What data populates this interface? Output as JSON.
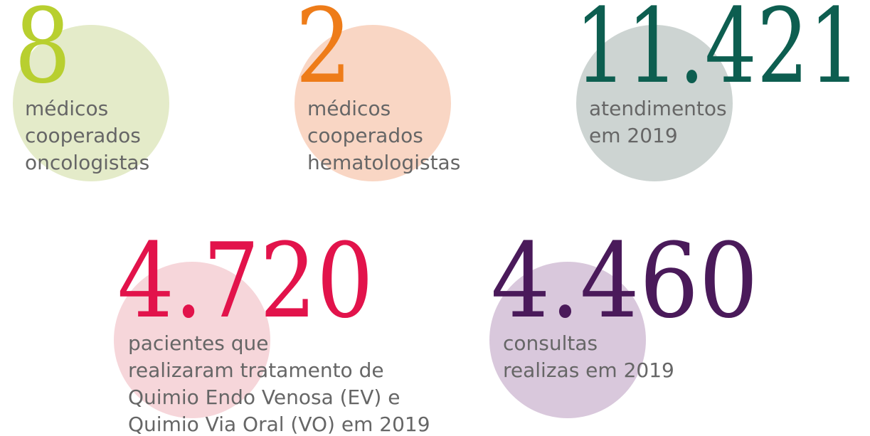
{
  "stats": [
    {
      "value": "8",
      "lines": [
        "médicos",
        "cooperados",
        "oncologistas"
      ]
    },
    {
      "value": "2",
      "lines": [
        "médicos",
        "cooperados",
        "hematologistas"
      ]
    },
    {
      "value": "11.421",
      "lines": [
        "atendimentos",
        "em 2019"
      ]
    },
    {
      "value": "4.720",
      "lines": [
        "pacientes que",
        "realizaram tratamento de",
        "Quimio Endo Venosa (EV) e",
        "Quimio Via Oral (VO) em 2019"
      ]
    },
    {
      "value": "4.460",
      "lines": [
        "consultas",
        "realizas em 2019"
      ]
    }
  ]
}
